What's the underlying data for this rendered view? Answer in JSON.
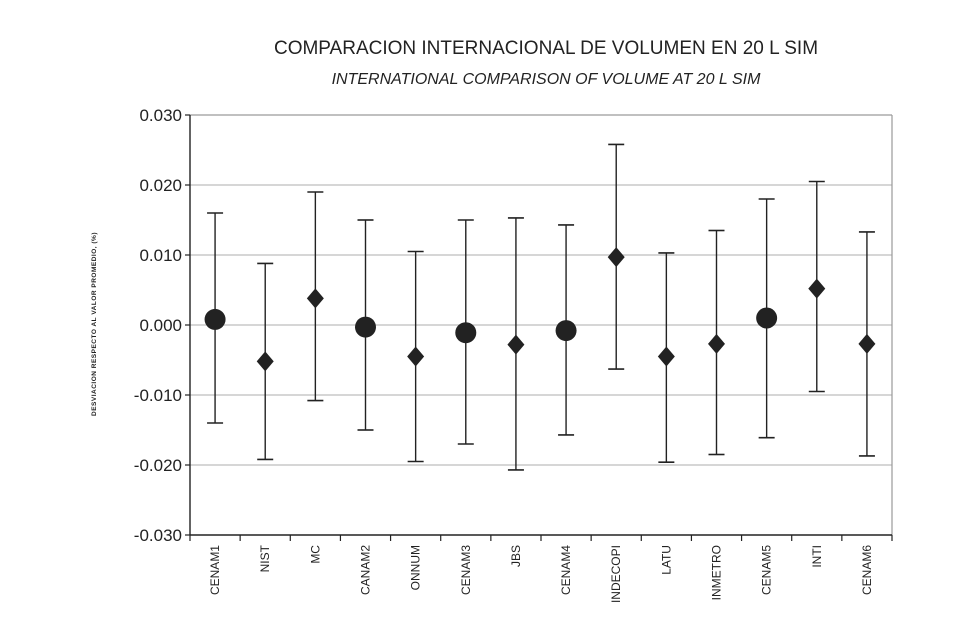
{
  "chart_data": {
    "type": "scatter",
    "title": "COMPARACION INTERNACIONAL DE VOLUMEN EN 20 L  SIM",
    "subtitle": "INTERNATIONAL COMPARISON OF VOLUME AT 20 L  SIM",
    "ylabel": "DESVIACION RESPECTO AL VALOR PROMEDIO, (%)",
    "xlabel": "",
    "ylim": [
      -0.03,
      0.03
    ],
    "yticks": [
      0.03,
      0.02,
      0.01,
      0.0,
      -0.01,
      -0.02,
      -0.03
    ],
    "ytick_labels": [
      "0.030",
      "0.020",
      "0.010",
      "0.000",
      "-0.010",
      "-0.020",
      "-0.030"
    ],
    "grid": "horizontal",
    "categories": [
      "CENAM1",
      "NIST",
      "MC",
      "CANAM2",
      "ONNUM",
      "CENAM3",
      "JBS",
      "CENAM4",
      "INDECOPI",
      "LATU",
      "INMETRO",
      "CENAM5",
      "INTI",
      "CENAM6"
    ],
    "values": [
      0.0008,
      -0.0052,
      0.0038,
      -0.0003,
      -0.0045,
      -0.0011,
      -0.0028,
      -0.0008,
      0.0097,
      -0.0045,
      -0.0027,
      0.001,
      0.0052,
      -0.0027
    ],
    "error_upper": [
      0.016,
      0.0088,
      0.019,
      0.015,
      0.0105,
      0.015,
      0.0153,
      0.0143,
      0.0258,
      0.0103,
      0.0135,
      0.018,
      0.0205,
      0.0133
    ],
    "error_lower": [
      -0.014,
      -0.0192,
      -0.0108,
      -0.015,
      -0.0195,
      -0.017,
      -0.0207,
      -0.0157,
      -0.0063,
      -0.0196,
      -0.0185,
      -0.0161,
      -0.0095,
      -0.0187
    ],
    "markers": [
      "circle",
      "diamond",
      "diamond",
      "circle",
      "diamond",
      "circle",
      "diamond",
      "circle",
      "diamond",
      "diamond",
      "diamond",
      "circle",
      "diamond",
      "diamond"
    ]
  }
}
